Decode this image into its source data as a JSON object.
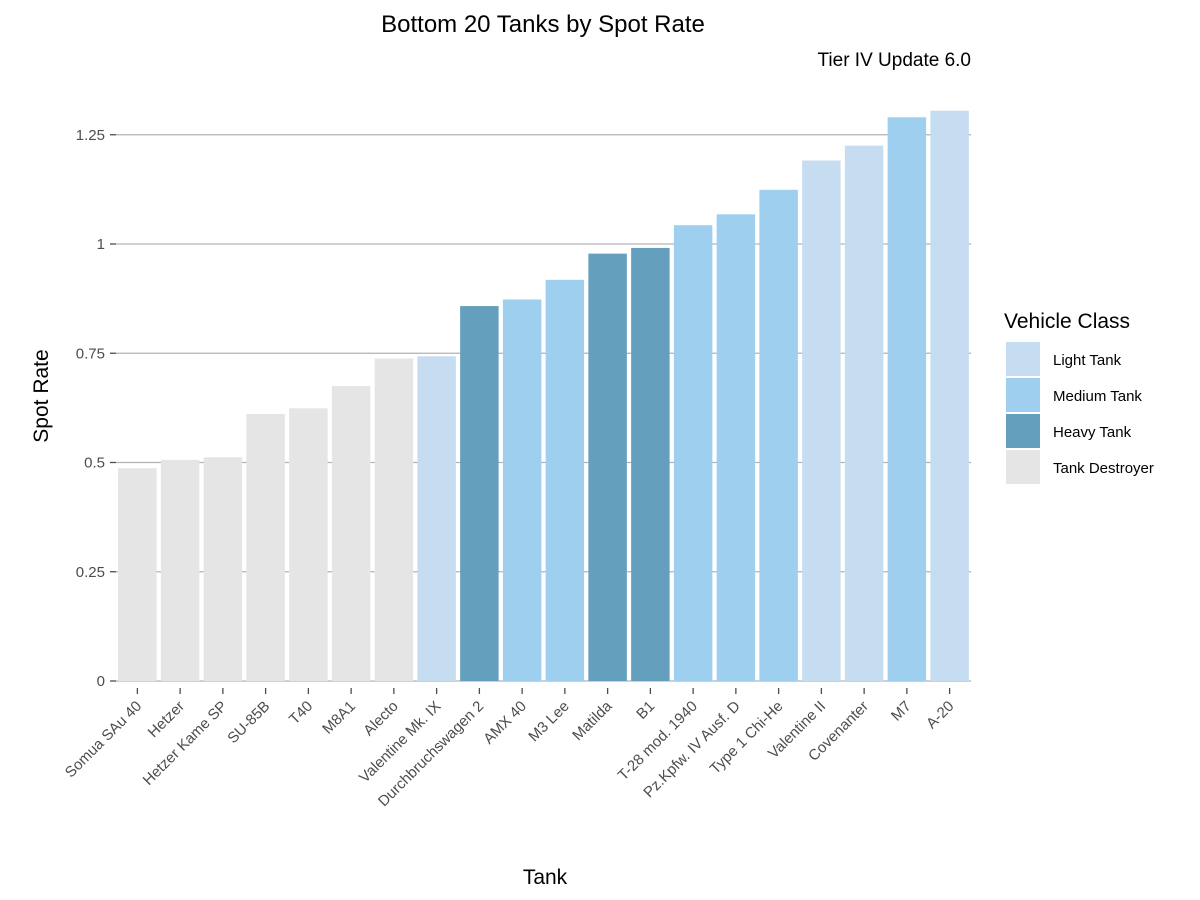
{
  "chart_data": {
    "type": "bar",
    "title": "Bottom 20 Tanks by Spot Rate",
    "subtitle": "Tier IV Update 6.0",
    "xlabel": "Tank",
    "ylabel": "Spot Rate",
    "ylim": [
      0,
      1.3
    ],
    "yticks": [
      0,
      0.25,
      0.5,
      0.75,
      1,
      1.25
    ],
    "ytick_labels": [
      "0",
      "0.25",
      "0.5",
      "0.75",
      "1",
      "1.25"
    ],
    "grid": "horizontal major",
    "legend": {
      "title": "Vehicle Class",
      "placement": "right",
      "entries": [
        {
          "label": "Light Tank",
          "color": "#c6ddf1"
        },
        {
          "label": "Medium Tank",
          "color": "#9ecfef"
        },
        {
          "label": "Heavy Tank",
          "color": "#659fbe"
        },
        {
          "label": "Tank Destroyer",
          "color": "#e5e5e5"
        }
      ]
    },
    "categories": [
      "Somua SAu 40",
      "Hetzer",
      "Hetzer Kame SP",
      "SU-85B",
      "T40",
      "M8A1",
      "Alecto",
      "Valentine Mk. IX",
      "Durchbruchswagen 2",
      "AMX 40",
      "M3 Lee",
      "Matilda",
      "B1",
      "T-28 mod. 1940",
      "Pz.Kpfw. IV Ausf. D",
      "Type 1 Chi-He",
      "Valentine II",
      "Covenanter",
      "M7",
      "A-20"
    ],
    "values": [
      0.487,
      0.506,
      0.512,
      0.611,
      0.624,
      0.675,
      0.738,
      0.743,
      0.858,
      0.873,
      0.918,
      0.978,
      0.991,
      1.043,
      1.068,
      1.124,
      1.191,
      1.225,
      1.29,
      1.305
    ],
    "classes": [
      "Tank Destroyer",
      "Tank Destroyer",
      "Tank Destroyer",
      "Tank Destroyer",
      "Tank Destroyer",
      "Tank Destroyer",
      "Tank Destroyer",
      "Light Tank",
      "Heavy Tank",
      "Medium Tank",
      "Medium Tank",
      "Heavy Tank",
      "Heavy Tank",
      "Medium Tank",
      "Medium Tank",
      "Medium Tank",
      "Light Tank",
      "Light Tank",
      "Medium Tank",
      "Light Tank"
    ]
  }
}
